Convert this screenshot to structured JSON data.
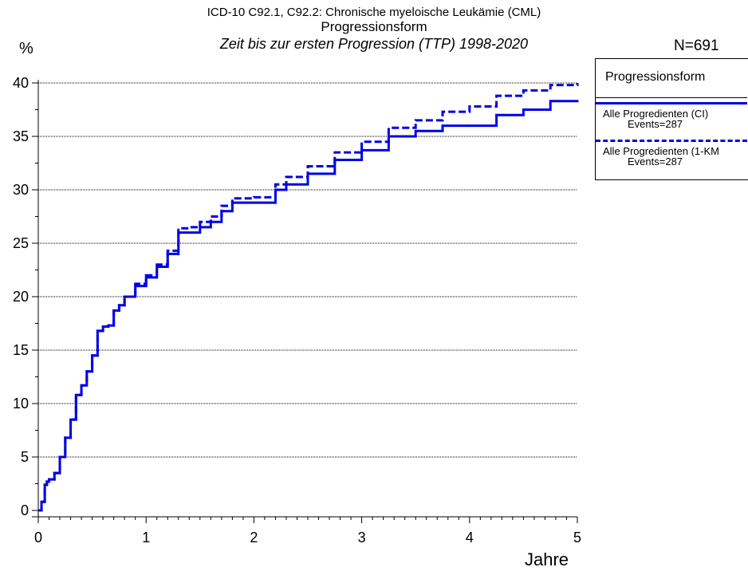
{
  "header": {
    "title_line1": "ICD-10 C92.1, C92.2: Chronische myeloische Leukämie (CML)",
    "title_line2": "Progressionsform",
    "title_line3": "Zeit bis zur ersten Progression (TTP) 1998-2020",
    "n_count": "N=691"
  },
  "chart_data": {
    "type": "line",
    "ylabel": "%",
    "xlabel": "Jahre",
    "xlim": [
      0,
      5
    ],
    "ylim": [
      0,
      40
    ],
    "x_ticks": [
      0,
      1,
      2,
      3,
      4,
      5
    ],
    "x_minor_step": 0.1,
    "y_ticks": [
      0,
      5,
      10,
      15,
      20,
      25,
      30,
      35,
      40
    ],
    "y_grid": true,
    "legend_position": "right",
    "legend": {
      "title": "Progressionsform",
      "entries": [
        {
          "label": "Alle Progredienten (CI)",
          "events": "Events=287",
          "style": "solid"
        },
        {
          "label": "Alle Progredienten (1-KM",
          "events": "Events=287",
          "style": "dashed"
        }
      ]
    },
    "colors": {
      "series": "#0000e6"
    },
    "series": [
      {
        "name": "Alle Progredienten (CI)",
        "style": "solid",
        "x": [
          0,
          0.03,
          0.06,
          0.08,
          0.1,
          0.15,
          0.2,
          0.25,
          0.3,
          0.35,
          0.4,
          0.45,
          0.5,
          0.55,
          0.6,
          0.65,
          0.7,
          0.75,
          0.8,
          0.9,
          1.0,
          1.1,
          1.2,
          1.3,
          1.4,
          1.5,
          1.6,
          1.7,
          1.8,
          2.0,
          2.2,
          2.3,
          2.5,
          2.75,
          3.0,
          3.25,
          3.5,
          3.75,
          4.0,
          4.25,
          4.5,
          4.75,
          5.0
        ],
        "y": [
          0,
          0.8,
          2.4,
          2.7,
          2.9,
          3.5,
          5.0,
          6.8,
          8.5,
          10.8,
          11.7,
          13.0,
          14.5,
          16.8,
          17.2,
          17.3,
          18.7,
          19.2,
          20.0,
          21.0,
          21.8,
          22.8,
          24.0,
          26.0,
          26.0,
          26.5,
          27.0,
          28.0,
          28.8,
          28.8,
          30.0,
          30.5,
          31.5,
          32.8,
          33.7,
          35.0,
          35.5,
          36.0,
          36.0,
          37.0,
          37.5,
          38.3,
          38.4
        ]
      },
      {
        "name": "Alle Progredienten (1-KM",
        "style": "dashed",
        "x": [
          0,
          0.03,
          0.06,
          0.08,
          0.1,
          0.15,
          0.2,
          0.25,
          0.3,
          0.35,
          0.4,
          0.45,
          0.5,
          0.55,
          0.6,
          0.65,
          0.7,
          0.75,
          0.8,
          0.9,
          1.0,
          1.1,
          1.2,
          1.3,
          1.4,
          1.5,
          1.6,
          1.7,
          1.8,
          2.0,
          2.2,
          2.3,
          2.5,
          2.75,
          3.0,
          3.25,
          3.5,
          3.75,
          4.0,
          4.25,
          4.5,
          4.75,
          5.0
        ],
        "y": [
          0,
          0.8,
          2.4,
          2.7,
          2.9,
          3.5,
          5.0,
          6.8,
          8.5,
          10.8,
          11.7,
          13.0,
          14.5,
          16.8,
          17.2,
          17.3,
          18.7,
          19.2,
          20.0,
          21.2,
          22.0,
          23.0,
          24.3,
          26.4,
          26.5,
          27.0,
          27.5,
          28.5,
          29.2,
          29.3,
          30.5,
          31.2,
          32.2,
          33.5,
          34.5,
          35.8,
          36.5,
          37.3,
          37.8,
          38.8,
          39.3,
          39.8,
          40.0
        ]
      }
    ]
  }
}
